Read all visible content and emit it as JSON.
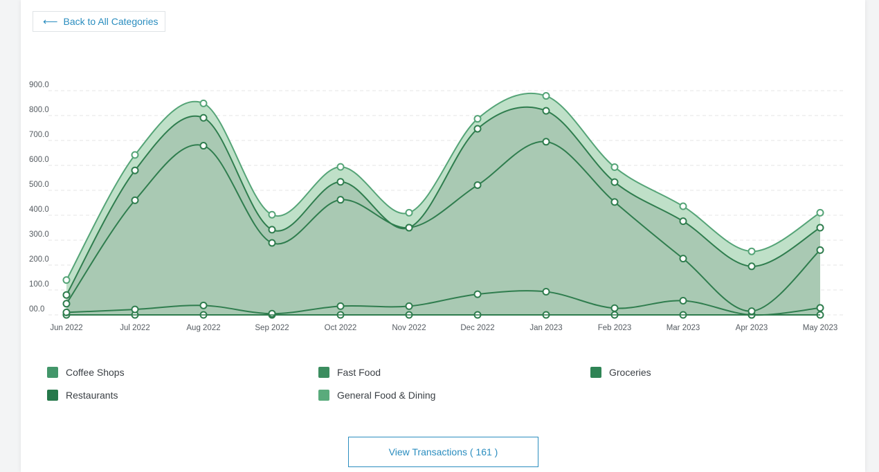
{
  "back_button": {
    "label": "Back to All Categories",
    "icon": "left-arrow-icon"
  },
  "view_button": {
    "label": "View Transactions ( 161 )"
  },
  "colors": {
    "area": "#a9c9b3",
    "band": "#bfe0c8",
    "stroke_primary": "#2f7d4e",
    "stroke_outer": "#55a477",
    "grid": "#e4e4e4"
  },
  "legend": [
    {
      "label": "Coffee Shops",
      "color": "#43966a"
    },
    {
      "label": "Fast Food",
      "color": "#3b8d5f"
    },
    {
      "label": "Groceries",
      "color": "#2f8455"
    },
    {
      "label": "Restaurants",
      "color": "#25784a"
    },
    {
      "label": "General Food & Dining",
      "color": "#5aab7c"
    }
  ],
  "chart_data": {
    "type": "area",
    "stacked": true,
    "x": [
      "Jun 2022",
      "Jul 2022",
      "Aug 2022",
      "Sep 2022",
      "Oct 2022",
      "Nov 2022",
      "Dec 2022",
      "Jan 2023",
      "Feb 2023",
      "Mar 2023",
      "Apr 2023",
      "May 2023"
    ],
    "ylim": [
      0,
      900
    ],
    "yticks": [
      "00.0",
      "100.0",
      "200.0",
      "300.0",
      "400.0",
      "500.0",
      "600.0",
      "700.0",
      "800.0",
      "900.0"
    ],
    "grid": true,
    "legend_position": "bottom",
    "series": [
      {
        "name": "Coffee Shops",
        "values": [
          0,
          0,
          0,
          0,
          0,
          0,
          0,
          0,
          0,
          0,
          0,
          0
        ]
      },
      {
        "name": "Fast Food",
        "values": [
          10,
          22,
          38,
          5,
          35,
          35,
          83,
          93,
          27,
          57,
          0,
          28
        ]
      },
      {
        "name": "Groceries",
        "values": [
          35,
          438,
          641,
          284,
          427,
          315,
          438,
          602,
          426,
          169,
          15,
          232
        ]
      },
      {
        "name": "Restaurants",
        "values": [
          35,
          120,
          112,
          53,
          72,
          0,
          226,
          124,
          80,
          150,
          180,
          90
        ]
      },
      {
        "name": "General Food & Dining",
        "values": [
          60,
          62,
          58,
          60,
          60,
          60,
          40,
          60,
          60,
          60,
          60,
          60
        ]
      }
    ]
  }
}
